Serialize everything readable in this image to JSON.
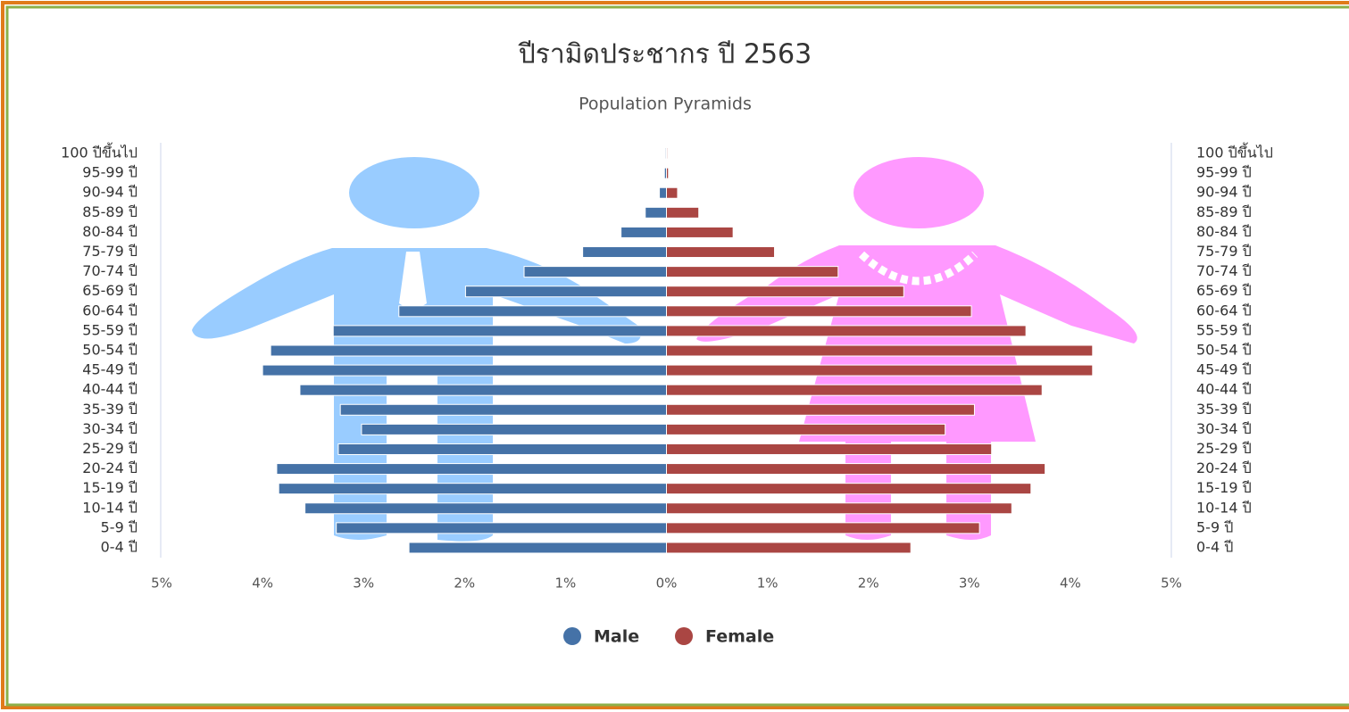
{
  "chart_data": {
    "type": "pyramid",
    "title": "ปีรามิดประชากร ปี 2563",
    "subtitle": "Population Pyramids",
    "categories": [
      "100 ปีขึ้นไป",
      "95-99 ปี",
      "90-94 ปี",
      "85-89 ปี",
      "80-84 ปี",
      "75-79 ปี",
      "70-74 ปี",
      "65-69 ปี",
      "60-64 ปี",
      "55-59 ปี",
      "50-54 ปี",
      "45-49 ปี",
      "40-44 ปี",
      "35-39 ปี",
      "30-34 ปี",
      "25-29 ปี",
      "20-24 ปี",
      "15-19 ปี",
      "10-14 ปี",
      "5-9 ปี",
      "0-4 ปี"
    ],
    "series": [
      {
        "name": "Male",
        "color": "#4572a7",
        "values": [
          -0.01,
          -0.02,
          -0.07,
          -0.21,
          -0.45,
          -0.83,
          -1.41,
          -1.99,
          -2.65,
          -3.3,
          -3.92,
          -4.0,
          -3.63,
          -3.23,
          -3.02,
          -3.25,
          -3.86,
          -3.84,
          -3.58,
          -3.27,
          -2.55
        ]
      },
      {
        "name": "Female",
        "color": "#aa4643",
        "values": [
          0.01,
          0.02,
          0.11,
          0.32,
          0.66,
          1.07,
          1.7,
          2.35,
          3.02,
          3.56,
          4.22,
          4.22,
          3.72,
          3.05,
          2.76,
          3.22,
          3.75,
          3.61,
          3.42,
          3.1,
          2.42
        ]
      }
    ],
    "xlim": [
      -5,
      5
    ],
    "xticks": [
      {
        "value": -5,
        "label": "5%"
      },
      {
        "value": -4,
        "label": "4%"
      },
      {
        "value": -3,
        "label": "3%"
      },
      {
        "value": -2,
        "label": "2%"
      },
      {
        "value": -1,
        "label": "1%"
      },
      {
        "value": 0,
        "label": "0%"
      },
      {
        "value": 1,
        "label": "1%"
      },
      {
        "value": 2,
        "label": "2%"
      },
      {
        "value": 3,
        "label": "3%"
      },
      {
        "value": 4,
        "label": "4%"
      },
      {
        "value": 5,
        "label": "5%"
      }
    ]
  }
}
